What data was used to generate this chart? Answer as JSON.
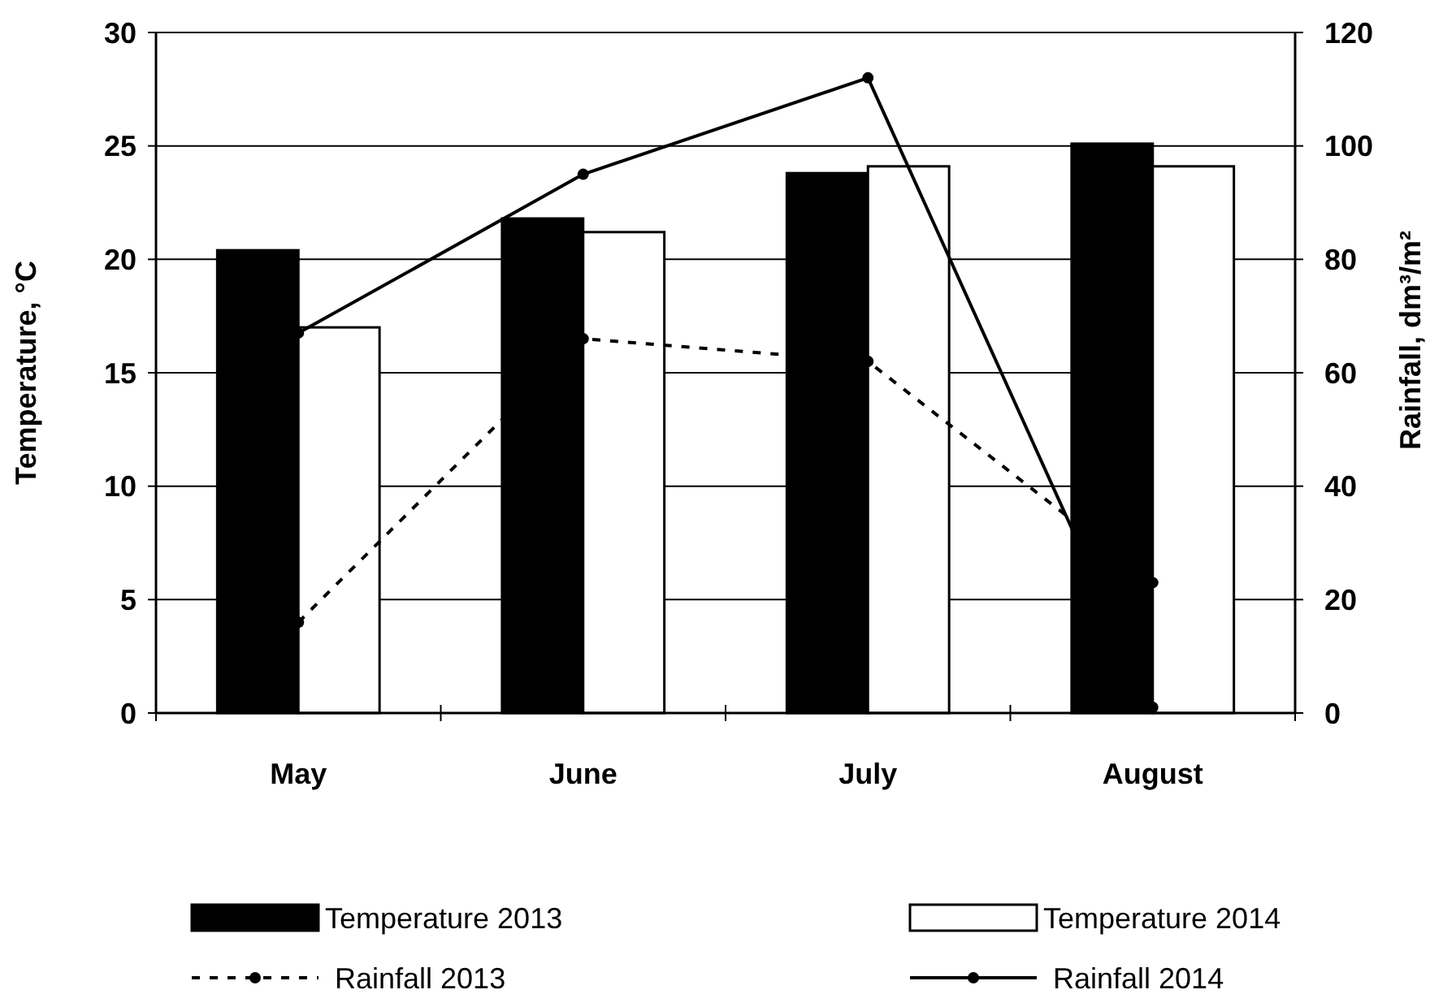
{
  "chart_data": {
    "type": "bar",
    "categories": [
      "May",
      "June",
      "July",
      "August"
    ],
    "ylabel": "Temperature, °C",
    "y2label": "Rainfall, dm³/m²",
    "ylim": [
      0,
      30
    ],
    "yticks": [
      0,
      5,
      10,
      15,
      20,
      25,
      30
    ],
    "y2lim": [
      0,
      120
    ],
    "y2ticks": [
      0,
      20,
      40,
      60,
      80,
      100,
      120
    ],
    "grid": "y",
    "legend": "bottom",
    "series": [
      {
        "name": "Temperature 2013",
        "color": "#000000",
        "values": [
          20.4,
          21.8,
          23.8,
          25.1
        ]
      },
      {
        "name": "Temperature 2014",
        "color": "#ffffff",
        "values": [
          17.0,
          21.2,
          24.1,
          24.1
        ]
      },
      {
        "name": "Rainfall 2013",
        "type": "line",
        "axis": "y2",
        "color": "#000000",
        "line_style": "dashed",
        "marker": "circle",
        "values": [
          16,
          66,
          62,
          23
        ]
      },
      {
        "name": "Rainfall 2014",
        "type": "line",
        "axis": "y2",
        "color": "#000000",
        "line_style": "solid",
        "marker": "circle",
        "values": [
          67,
          95,
          112,
          1
        ]
      }
    ]
  }
}
